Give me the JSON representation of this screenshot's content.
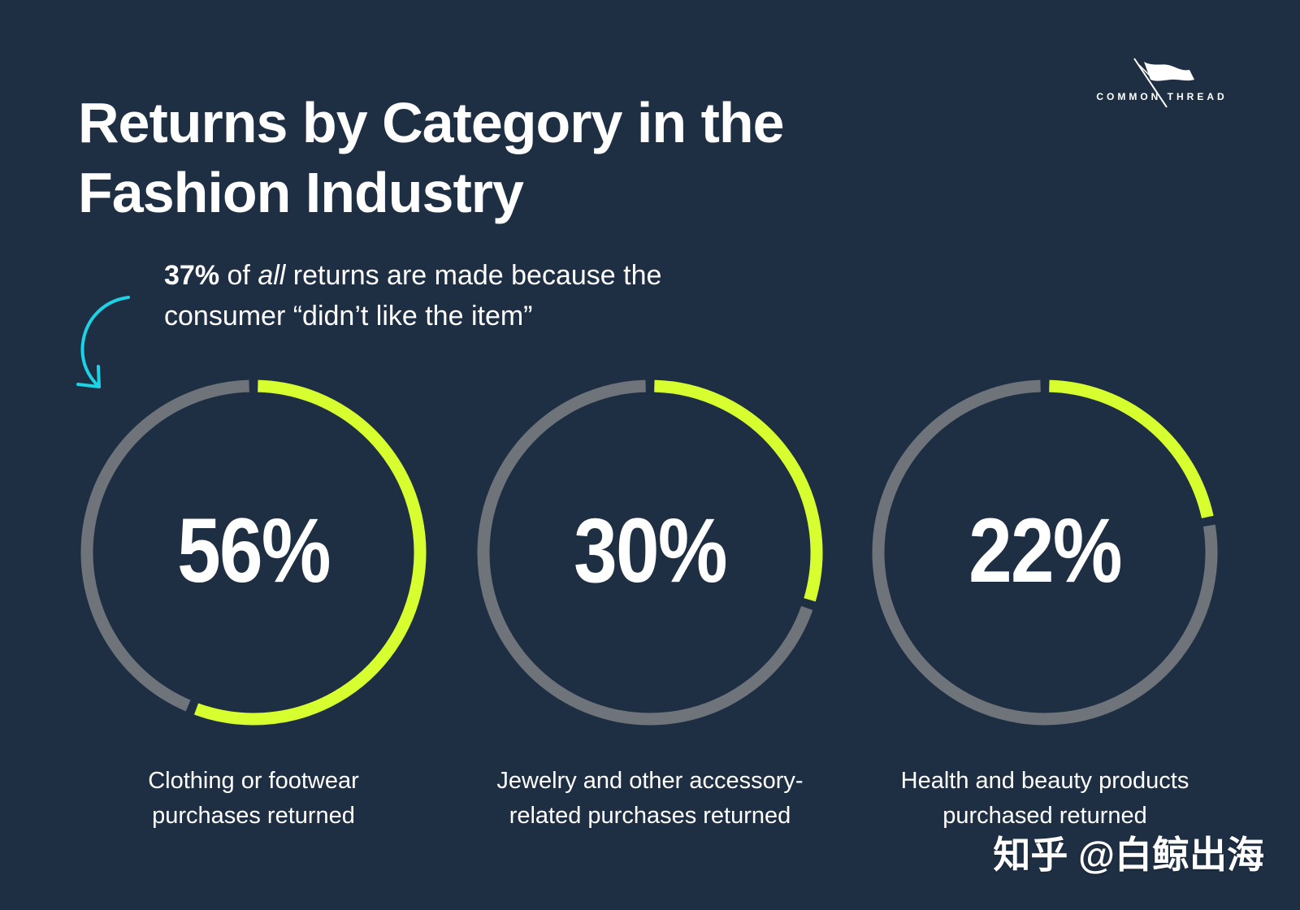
{
  "brand": {
    "logo_text": "COMMON THREAD"
  },
  "header": {
    "title_line1": "Returns by Category in the",
    "title_line2": "Fashion Industry"
  },
  "callout": {
    "stat": "37%",
    "text_1": " of ",
    "emphasis": "all",
    "text_2": " returns are made because the",
    "text_3": "consumer “didn’t like the item”"
  },
  "chart_data": {
    "type": "pie",
    "title": "Returns by Category in the Fashion Industry",
    "categories": [
      "Clothing or footwear purchases returned",
      "Jewelry and other accessory-related purchases returned",
      "Health and beauty products purchased returned"
    ],
    "values": [
      56,
      30,
      22
    ],
    "labels": [
      "56%",
      "30%",
      "22%"
    ],
    "series": [
      {
        "values": [
          56,
          30,
          22
        ]
      }
    ],
    "grid": false,
    "legend": "none",
    "colors": {
      "value": "#d7ff2f",
      "remainder": "#6f747b",
      "background": "#1f2f43",
      "accent_arrow": "#1ed2e6"
    }
  },
  "cards": [
    {
      "percent": "56%",
      "caption_line1": "Clothing or footwear",
      "caption_line2": "purchases returned"
    },
    {
      "percent": "30%",
      "caption_line1": "Jewelry and other accessory-",
      "caption_line2": "related purchases returned"
    },
    {
      "percent": "22%",
      "caption_line1": "Health and beauty products",
      "caption_line2": "purchased returned"
    }
  ],
  "watermark": {
    "text": "知乎 @白鲸出海"
  },
  "icons": {
    "logo": "flag-needle-icon",
    "callout_arrow": "curved-arrow-icon"
  }
}
